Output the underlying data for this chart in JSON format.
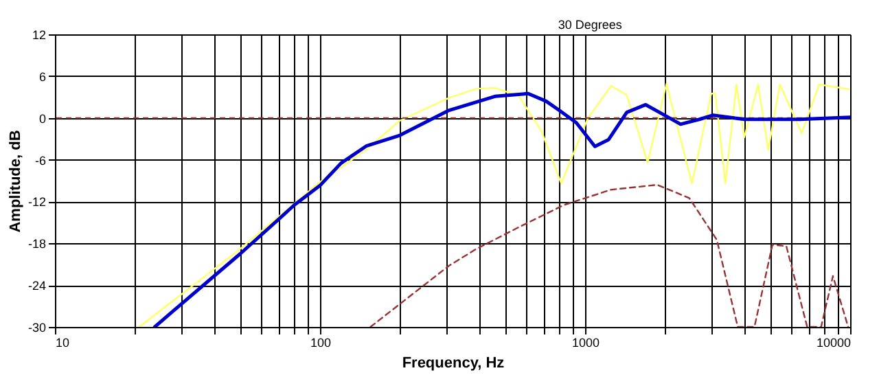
{
  "chart_data": {
    "type": "line",
    "xlabel": "Frequency, Hz",
    "ylabel": "Amplitude, dB",
    "log": "x",
    "grid": true,
    "marker": "none",
    "xlim": [
      10,
      10000
    ],
    "ylim": [
      -30,
      12
    ],
    "xticks": [
      10,
      {
        "value": 20,
        "label": null
      },
      {
        "value": 30,
        "label": null
      },
      {
        "value": 40,
        "label": null
      },
      {
        "value": 50,
        "label": null
      },
      {
        "value": 60,
        "label": null
      },
      {
        "value": 70,
        "label": null
      },
      {
        "value": 80,
        "label": null
      },
      {
        "value": 90,
        "label": null
      },
      100,
      {
        "value": 200,
        "label": null
      },
      {
        "value": 300,
        "label": null
      },
      {
        "value": 400,
        "label": null
      },
      {
        "value": 500,
        "label": null
      },
      {
        "value": 600,
        "label": null
      },
      {
        "value": 700,
        "label": null
      },
      {
        "value": 800,
        "label": null
      },
      {
        "value": 900,
        "label": null
      },
      1000,
      {
        "value": 2000,
        "label": null
      },
      {
        "value": 3000,
        "label": null
      },
      {
        "value": 4000,
        "label": null
      },
      {
        "value": 5000,
        "label": null
      },
      {
        "value": 6000,
        "label": null
      },
      {
        "value": 7000,
        "label": null
      },
      {
        "value": 8000,
        "label": null
      },
      {
        "value": 9000,
        "label": null
      },
      10000
    ],
    "yticks": [
      -30,
      -24,
      -18,
      -12,
      -6,
      0,
      6,
      12
    ],
    "annotations": [
      "30 Degrees"
    ],
    "ref_lines": [
      {
        "axis": "y",
        "value": 0,
        "label": null,
        "color": "#993333",
        "line_style": "dashed"
      }
    ],
    "series": [
      {
        "color": "#ffff66",
        "line_style": "solid",
        "x": [
          20.8,
          50,
          100,
          150,
          200,
          307,
          389,
          457,
          561,
          685,
          813,
          1023,
          1253,
          1436,
          1722,
          2028,
          2529,
          2993,
          3100,
          3383,
          3724,
          3985,
          4496,
          4909,
          5430,
          6565,
          7640,
          10000
        ],
        "values": [
          -30,
          -18.8,
          -9.2,
          -4.5,
          -0.4,
          2.9,
          4.2,
          4.3,
          3.2,
          -1.9,
          -9.4,
          -0.1,
          4.6,
          3.3,
          -6.4,
          4.9,
          -9.4,
          3.5,
          3.5,
          -9.4,
          4.8,
          -2.8,
          4.8,
          -4.6,
          4.8,
          -2.2,
          4.8,
          4.1
        ]
      },
      {
        "color": "#0000cc",
        "line_style": "solid",
        "x": [
          23.8,
          30,
          50,
          70,
          80,
          100,
          120,
          150,
          200,
          307,
          457,
          610,
          713,
          805,
          927,
          1089,
          1227,
          1436,
          1693,
          1950,
          2292,
          2700,
          3040,
          3985,
          6450,
          10000
        ],
        "values": [
          -30,
          -26.7,
          -19.5,
          -14.5,
          -12.5,
          -9.7,
          -6.5,
          -4,
          -2.5,
          1.1,
          3.1,
          3.5,
          2.4,
          1.0,
          -0.7,
          -4.1,
          -3.1,
          0.8,
          1.9,
          0.6,
          -0.9,
          -0.2,
          0.4,
          -0.2,
          -0.2,
          0.1
        ]
      },
      {
        "color": "#993333",
        "line_style": "dashed",
        "x": [
          155,
          307,
          389,
          561,
          832,
          1253,
          1871,
          2472,
          3140,
          3767,
          4355,
          5090,
          5744,
          6886,
          7770,
          8610,
          9830
        ],
        "values": [
          -30,
          -21.2,
          -18.8,
          -15.7,
          -12.5,
          -10.3,
          -9.6,
          -11.5,
          -17.5,
          -30,
          -30,
          -18.2,
          -18.4,
          -30,
          -30,
          -22.7,
          -30
        ]
      }
    ]
  }
}
